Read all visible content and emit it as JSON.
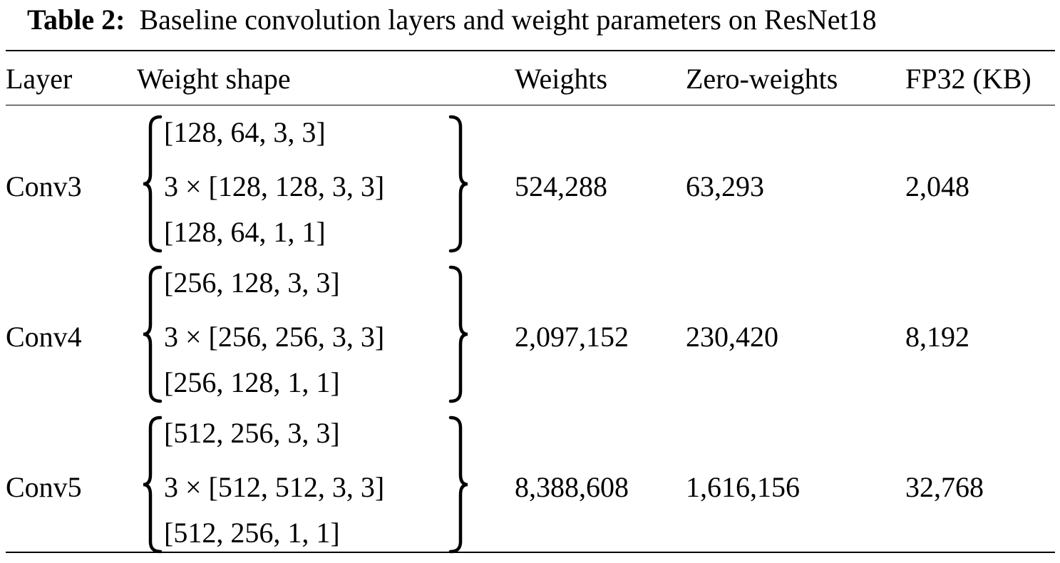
{
  "caption": {
    "label": "Table 2:",
    "text": "Baseline convolution layers and weight parameters on ResNet18"
  },
  "table": {
    "headers": {
      "layer": "Layer",
      "shape": "Weight shape",
      "weights": "Weights",
      "zero": "Zero-weights",
      "fp32": "FP32 (KB)"
    },
    "rows": [
      {
        "layer": "Conv3",
        "shapes": [
          "[128, 64, 3, 3]",
          "3 × [128, 128, 3, 3]",
          "[128, 64, 1, 1]"
        ],
        "weights": "524,288",
        "zero": "63,293",
        "fp32": "2,048"
      },
      {
        "layer": "Conv4",
        "shapes": [
          "[256, 128, 3, 3]",
          "3 × [256, 256, 3, 3]",
          "[256, 128, 1, 1]"
        ],
        "weights": "2,097,152",
        "zero": "230,420",
        "fp32": "8,192"
      },
      {
        "layer": "Conv5",
        "shapes": [
          "[512, 256, 3, 3]",
          "3 × [512, 512, 3, 3]",
          "[512, 256, 1, 1]"
        ],
        "weights": "8,388,608",
        "zero": "1,616,156",
        "fp32": "32,768"
      }
    ]
  }
}
